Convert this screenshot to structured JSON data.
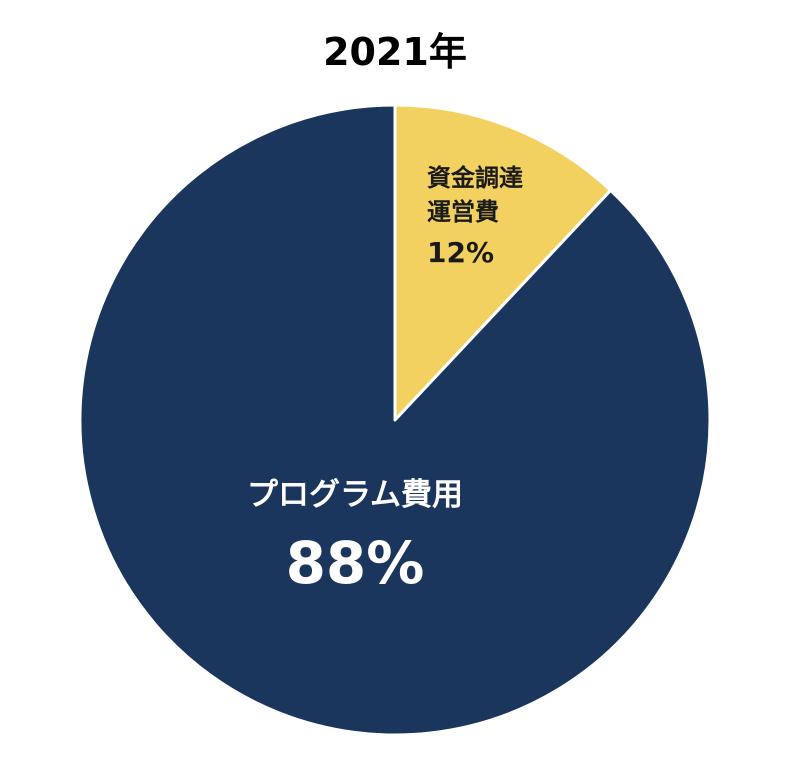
{
  "chart_data": {
    "type": "pie",
    "title": "2021年",
    "slices": [
      {
        "name_lines": [
          "資金調達",
          "運営費"
        ],
        "value": 12,
        "value_label": "12%",
        "color": "#F3D160",
        "label_color": "#1A1A1A"
      },
      {
        "name_lines": [
          "プログラム費用"
        ],
        "value": 88,
        "value_label": "88%",
        "color": "#1B365D",
        "label_color": "#FFFFFF"
      }
    ],
    "start_angle": "12 o'clock",
    "direction": "clockwise",
    "slice_border_color": "#FFFFFF",
    "legend": "none"
  }
}
